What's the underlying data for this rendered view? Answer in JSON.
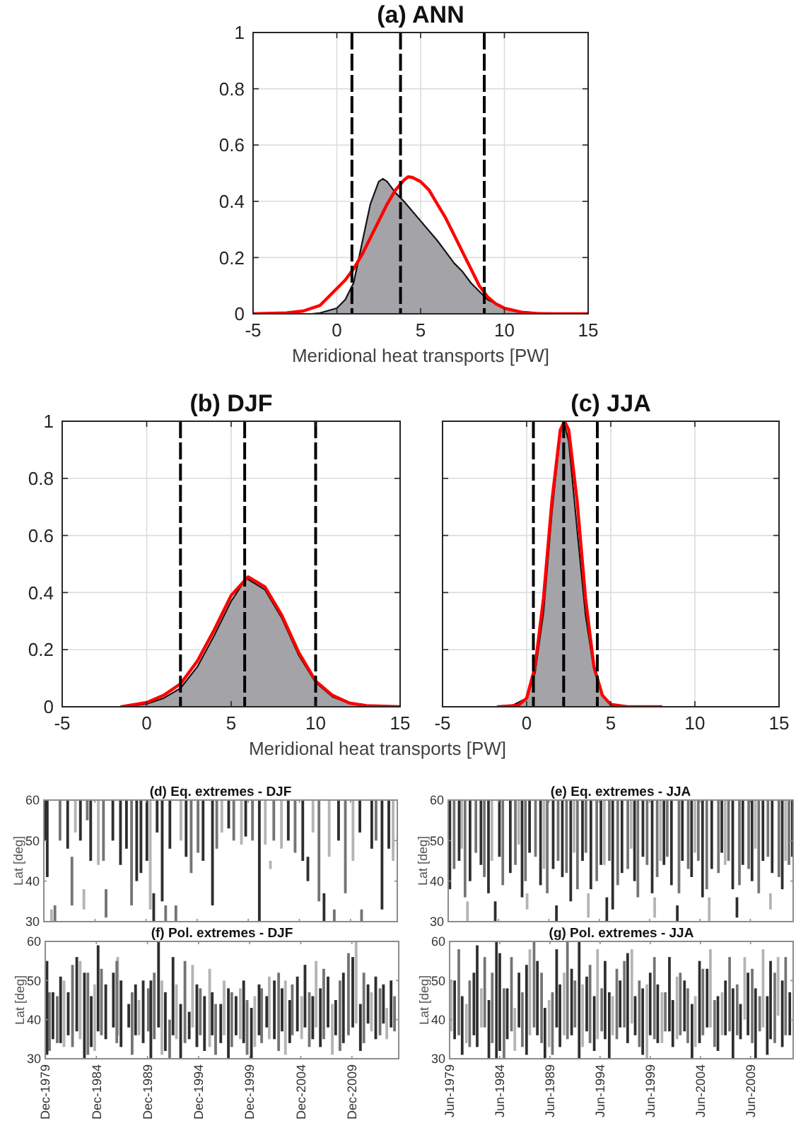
{
  "chart_data": [
    {
      "type": "area",
      "title": "(a) ANN",
      "xlabel": "Meridional heat transports [PW]",
      "xlim": [
        -5,
        15
      ],
      "xticks": [
        -5,
        0,
        5,
        10,
        15
      ],
      "ylim": [
        0,
        1
      ],
      "yticks": [
        0,
        0.2,
        0.4,
        0.6,
        0.8,
        1
      ],
      "grid": true,
      "series": [
        {
          "color": "#a4a4a8",
          "x": [
            -1.5,
            -1,
            0,
            0.5,
            1,
            1.5,
            2,
            2.5,
            2.75,
            3,
            3.5,
            4,
            5,
            6,
            6.5,
            7,
            7.5,
            8,
            8.5,
            9,
            9.5,
            10,
            11,
            12,
            13
          ],
          "values": [
            0,
            0.003,
            0.02,
            0.05,
            0.11,
            0.25,
            0.39,
            0.47,
            0.48,
            0.47,
            0.43,
            0.4,
            0.33,
            0.26,
            0.22,
            0.18,
            0.15,
            0.11,
            0.08,
            0.05,
            0.035,
            0.022,
            0.008,
            0.002,
            0
          ]
        },
        {
          "type": "line",
          "color": "#ff0000",
          "x": [
            -5,
            -3,
            -2,
            -1,
            0,
            0.5,
            1,
            1.5,
            2,
            2.5,
            3,
            3.5,
            4,
            4.25,
            4.5,
            5,
            5.5,
            6,
            6.5,
            7,
            7.5,
            8,
            8.5,
            9,
            9.5,
            10,
            11,
            12,
            13,
            15
          ],
          "values": [
            0,
            0.003,
            0.01,
            0.03,
            0.09,
            0.12,
            0.16,
            0.21,
            0.27,
            0.33,
            0.39,
            0.44,
            0.475,
            0.487,
            0.485,
            0.47,
            0.44,
            0.39,
            0.34,
            0.28,
            0.22,
            0.16,
            0.1,
            0.06,
            0.035,
            0.02,
            0.006,
            0.001,
            0,
            0
          ]
        }
      ],
      "ref_lines": [
        {
          "axis": "x",
          "value": 0.9,
          "color": "#000000",
          "line_style": "dashed"
        },
        {
          "axis": "x",
          "value": 3.8,
          "color": "#000000",
          "line_style": "dashed"
        },
        {
          "axis": "x",
          "value": 8.8,
          "color": "#000000",
          "line_style": "dashed"
        }
      ]
    },
    {
      "type": "area",
      "title": "(b) DJF",
      "xlabel": "Meridional heat transports [PW]",
      "xlim": [
        -5,
        15
      ],
      "xticks": [
        -5,
        0,
        5,
        10,
        15
      ],
      "ylim": [
        0,
        1
      ],
      "yticks": [
        0,
        0.2,
        0.4,
        0.6,
        0.8,
        1
      ],
      "grid": true,
      "series": [
        {
          "color": "#a4a4a8",
          "x": [
            -1.5,
            -1,
            0,
            1,
            2,
            3,
            4,
            5,
            5.9,
            7,
            8,
            9,
            10,
            11,
            12,
            13,
            14
          ],
          "values": [
            0,
            0.003,
            0.01,
            0.03,
            0.065,
            0.14,
            0.25,
            0.37,
            0.45,
            0.41,
            0.31,
            0.18,
            0.085,
            0.035,
            0.012,
            0.003,
            0
          ]
        },
        {
          "type": "line",
          "color": "#ff0000",
          "x": [
            -1.5,
            -1,
            0,
            1,
            2,
            3,
            4,
            5,
            6,
            7,
            8,
            9,
            10,
            11,
            12,
            13,
            15
          ],
          "values": [
            0,
            0.005,
            0.015,
            0.04,
            0.08,
            0.16,
            0.27,
            0.39,
            0.455,
            0.42,
            0.32,
            0.19,
            0.09,
            0.04,
            0.013,
            0.004,
            0
          ]
        }
      ],
      "ref_lines": [
        {
          "axis": "x",
          "value": 2,
          "color": "#000000",
          "line_style": "dashed"
        },
        {
          "axis": "x",
          "value": 5.8,
          "color": "#000000",
          "line_style": "dashed"
        },
        {
          "axis": "x",
          "value": 10,
          "color": "#000000",
          "line_style": "dashed"
        }
      ]
    },
    {
      "type": "area",
      "title": "(c) JJA",
      "xlim": [
        -5,
        15
      ],
      "xticks": [
        -5,
        0,
        5,
        10,
        15
      ],
      "ylim": [
        0,
        1
      ],
      "yticks": [
        0,
        0.2,
        0.4,
        0.6,
        0.8,
        1
      ],
      "grid": true,
      "tick_labels": "x",
      "series": [
        {
          "color": "#a4a4a8",
          "x": [
            -1,
            0,
            0.5,
            1,
            1.5,
            2,
            2.2,
            2.5,
            3,
            3.5,
            4,
            4.5,
            5,
            6
          ],
          "values": [
            0,
            0.03,
            0.12,
            0.33,
            0.68,
            0.96,
            1,
            0.93,
            0.62,
            0.32,
            0.13,
            0.04,
            0.01,
            0
          ]
        },
        {
          "type": "line",
          "color": "#ff0000",
          "x": [
            -1.7,
            -0.5,
            0,
            0.5,
            1,
            1.5,
            2,
            2.25,
            2.5,
            3,
            3.5,
            4,
            4.5,
            5,
            6,
            8
          ],
          "values": [
            0,
            0.005,
            0.03,
            0.14,
            0.38,
            0.72,
            0.97,
            1,
            0.97,
            0.72,
            0.38,
            0.14,
            0.04,
            0.008,
            0,
            0
          ]
        }
      ],
      "ref_lines": [
        {
          "axis": "x",
          "value": 0.4,
          "color": "#000000",
          "line_style": "dashed"
        },
        {
          "axis": "x",
          "value": 2.2,
          "color": "#000000",
          "line_style": "dashed"
        },
        {
          "axis": "x",
          "value": 4.2,
          "color": "#000000",
          "line_style": "dashed"
        }
      ]
    },
    {
      "type": "bar",
      "title": "(d) Eq. extremes - DJF",
      "ylabel": "Lat [deg]",
      "xlim": [
        "1979-12",
        "2014-07"
      ],
      "xticks": [
        {
          "value": "1979-12",
          "label": null
        },
        {
          "value": "1984-12",
          "label": null
        },
        {
          "value": "1989-12",
          "label": null
        },
        {
          "value": "1994-12",
          "label": null
        },
        {
          "value": "1999-12",
          "label": null
        },
        {
          "value": "2004-12",
          "label": null
        },
        {
          "value": "2009-12",
          "label": null
        }
      ],
      "ylim": [
        30,
        60
      ],
      "yticks": [
        30,
        40,
        50,
        60
      ],
      "tick_labels": "y",
      "series": [
        {
          "color": "#b4b4b4",
          "x": [
            "1980-09",
            "1983-01",
            "1983-11",
            "1985-04",
            "1990-05",
            "1993-05",
            "1997-05",
            "1999-04",
            "2001-08",
            "2002-02",
            "2003-03",
            "2006-04",
            "2007-11",
            "2010-03",
            "2014-02"
          ],
          "base": [
            30,
            52,
            33,
            44,
            33,
            50,
            52,
            49,
            49,
            43,
            48,
            52,
            46,
            45,
            45
          ],
          "values": [
            3,
            8,
            5,
            16,
            27,
            10,
            8,
            11,
            11,
            2,
            12,
            8,
            14,
            15,
            15
          ]
        },
        {
          "color": "#747474",
          "x": [
            "1981-01",
            "1981-07",
            "1982-09",
            "1984-03",
            "1985-10",
            "1986-01",
            "1988-07",
            "1991-11",
            "1992-11",
            "1994-05",
            "1995-01",
            "1996-11",
            "1998-07",
            "2000-05",
            "2002-06",
            "2004-07",
            "2006-11",
            "2008-05",
            "2009-06",
            "2011-01",
            "2012-06"
          ],
          "base": [
            30,
            50,
            34,
            55,
            45,
            31,
            34,
            30,
            30,
            42,
            47,
            48,
            50,
            50,
            50,
            47,
            35,
            30,
            37,
            30,
            50
          ],
          "values": [
            4,
            10,
            12,
            5,
            15,
            7,
            26,
            4,
            4,
            18,
            13,
            12,
            10,
            10,
            10,
            13,
            25,
            3,
            23,
            3,
            10
          ]
        },
        {
          "color": "#2e2e2e",
          "x": [
            "1980-01",
            "1980-04",
            "1982-04",
            "1983-07",
            "1984-07",
            "1986-09",
            "1987-06",
            "1988-01",
            "1989-01",
            "1989-06",
            "1990-01",
            "1990-09",
            "1991-01",
            "1991-07",
            "1992-04",
            "1993-11",
            "1995-07",
            "1996-06",
            "1998-01",
            "1999-09",
            "2001-01",
            "2003-11",
            "2005-04",
            "2005-10",
            "2007-05",
            "2008-10",
            "2010-11",
            "2012-01",
            "2013-01",
            "2013-09"
          ],
          "base": [
            50,
            41,
            48,
            50,
            45,
            50,
            44,
            48,
            40,
            42,
            45,
            30,
            52,
            35,
            48,
            46,
            45,
            34,
            53,
            51,
            30,
            50,
            45,
            40,
            30,
            50,
            52,
            48,
            33,
            48
          ],
          "values": [
            10,
            19,
            12,
            10,
            15,
            10,
            16,
            12,
            20,
            18,
            15,
            7,
            8,
            25,
            12,
            14,
            15,
            26,
            7,
            9,
            30,
            10,
            15,
            6,
            7,
            10,
            8,
            12,
            27,
            12
          ]
        }
      ]
    },
    {
      "type": "bar",
      "title": "(e) Eq. extremes - JJA",
      "ylabel": "Lat [deg]",
      "xlim": [
        "1979-06",
        "2013-09"
      ],
      "xticks": [
        {
          "value": "1979-06",
          "label": null
        },
        {
          "value": "1984-06",
          "label": null
        },
        {
          "value": "1989-06",
          "label": null
        },
        {
          "value": "1994-06",
          "label": null
        },
        {
          "value": "1999-06",
          "label": null
        },
        {
          "value": "2004-06",
          "label": null
        },
        {
          "value": "2009-06",
          "label": null
        }
      ],
      "ylim": [
        30,
        60
      ],
      "yticks": [
        30,
        40,
        50,
        60
      ],
      "tick_labels": "y",
      "series": [
        {
          "color": "#b4b4b4",
          "x": [
            "1980-10",
            "1981-05",
            "1983-10",
            "1986-06",
            "1987-04",
            "1988-12",
            "1991-12",
            "1993-05",
            "1994-12",
            "1997-08",
            "1999-12",
            "2000-07",
            "2003-12",
            "2005-05",
            "2006-12",
            "2009-12",
            "2011-06",
            "2012-12"
          ],
          "base": [
            48,
            30,
            45,
            49,
            33,
            43,
            47,
            31,
            44,
            48,
            31,
            45,
            47,
            30,
            44,
            48,
            33,
            45
          ],
          "values": [
            12,
            5,
            15,
            11,
            4,
            17,
            13,
            6,
            16,
            12,
            5,
            15,
            13,
            6,
            16,
            12,
            4,
            15
          ]
        },
        {
          "color": "#747474",
          "x": [
            "1980-01",
            "1981-02",
            "1982-03",
            "1983-01",
            "1984-11",
            "1986-02",
            "1987-02",
            "1988-02",
            "1989-04",
            "1990-05",
            "1991-03",
            "1992-04",
            "1993-02",
            "1994-03",
            "1995-06",
            "1996-04",
            "1997-04",
            "1998-04",
            "1999-03",
            "2000-03",
            "2001-03",
            "2002-05",
            "2003-04",
            "2004-04",
            "2005-02",
            "2006-04",
            "2007-04",
            "2008-05",
            "2009-04",
            "2010-04",
            "2011-03",
            "2012-04",
            "2013-04"
          ],
          "base": [
            43,
            36,
            47,
            41,
            39,
            44,
            40,
            46,
            37,
            45,
            42,
            38,
            47,
            40,
            45,
            39,
            43,
            36,
            44,
            41,
            46,
            37,
            43,
            45,
            38,
            42,
            45,
            39,
            43,
            37,
            46,
            41,
            44
          ],
          "values": [
            17,
            24,
            13,
            19,
            21,
            16,
            20,
            14,
            23,
            15,
            18,
            22,
            13,
            20,
            15,
            21,
            17,
            24,
            16,
            19,
            14,
            23,
            17,
            15,
            22,
            18,
            15,
            21,
            17,
            23,
            14,
            19,
            16
          ]
        },
        {
          "color": "#2e2e2e",
          "x": [
            "1979-08",
            "1980-07",
            "1981-08",
            "1982-09",
            "1983-06",
            "1984-02",
            "1984-07",
            "1985-08",
            "1986-10",
            "1987-07",
            "1988-08",
            "1989-11",
            "1990-03",
            "1990-10",
            "1991-08",
            "1992-10",
            "1993-08",
            "1994-08",
            "1995-03",
            "1995-10",
            "1996-09",
            "1997-12",
            "1998-10",
            "1999-09",
            "2000-11",
            "2001-08",
            "2002-03",
            "2002-09",
            "2003-08",
            "2004-09",
            "2005-08",
            "2006-08",
            "2007-09",
            "2008-02",
            "2008-09",
            "2009-08",
            "2010-09",
            "2011-08",
            "2012-08",
            "2013-08"
          ],
          "base": [
            38,
            45,
            40,
            44,
            37,
            30,
            46,
            42,
            36,
            47,
            39,
            43,
            30,
            41,
            35,
            45,
            38,
            44,
            30,
            33,
            42,
            40,
            46,
            37,
            44,
            39,
            30,
            45,
            41,
            36,
            43,
            47,
            38,
            31,
            44,
            40,
            45,
            42,
            38,
            46
          ],
          "values": [
            22,
            15,
            20,
            16,
            23,
            5,
            14,
            18,
            24,
            13,
            21,
            17,
            4,
            19,
            25,
            15,
            22,
            16,
            6,
            27,
            18,
            20,
            14,
            23,
            16,
            21,
            4,
            15,
            19,
            24,
            17,
            13,
            22,
            5,
            16,
            20,
            15,
            18,
            22,
            14
          ]
        }
      ]
    },
    {
      "type": "bar",
      "title": "(f) Pol. extremes - DJF",
      "ylabel": "Lat [deg]",
      "xlim": [
        "1979-12",
        "2014-07"
      ],
      "xticks": [
        {
          "value": "1979-12",
          "label": "Dec-1979"
        },
        {
          "value": "1984-12",
          "label": "Dec-1984"
        },
        {
          "value": "1989-12",
          "label": "Dec-1989"
        },
        {
          "value": "1994-12",
          "label": "Dec-1994"
        },
        {
          "value": "1999-12",
          "label": "Dec-1999"
        },
        {
          "value": "2004-12",
          "label": "Dec-2004"
        },
        {
          "value": "2009-12",
          "label": "Dec-2009"
        }
      ],
      "ylim": [
        30,
        60
      ],
      "yticks": [
        30,
        40,
        50,
        60
      ],
      "series": [
        {
          "color": "#b4b4b4",
          "x": [
            "1981-10",
            "1983-05",
            "1984-10",
            "1987-01",
            "1989-02",
            "1991-05",
            "1992-10",
            "1994-05",
            "1996-01",
            "1997-06",
            "1999-01",
            "2000-06",
            "2001-11",
            "2003-06",
            "2005-01",
            "2006-06",
            "2008-01",
            "2010-05",
            "2011-11",
            "2013-05"
          ],
          "base": [
            33,
            35,
            32,
            36,
            36,
            31,
            35,
            38,
            33,
            36,
            35,
            33,
            35,
            31,
            35,
            38,
            31,
            39,
            37,
            35
          ],
          "values": [
            17,
            20,
            17,
            20,
            9,
            19,
            14,
            16,
            20,
            14,
            13,
            13,
            16,
            19,
            11,
            17,
            13,
            21,
            10,
            8
          ]
        },
        {
          "color": "#747474",
          "x": [
            "1980-05",
            "1981-02",
            "1982-08",
            "1984-02",
            "1985-06",
            "1986-12",
            "1988-06",
            "1990-01",
            "1990-08",
            "1992-02",
            "1993-08",
            "1995-02",
            "1996-08",
            "1998-03",
            "1999-09",
            "2001-02",
            "2002-10",
            "2004-02",
            "2005-10",
            "2007-03",
            "2008-10",
            "2009-08",
            "2011-02",
            "2012-09",
            "2014-02"
          ],
          "base": [
            32,
            34,
            33,
            31,
            36,
            34,
            31,
            37,
            35,
            30,
            34,
            36,
            31,
            33,
            31,
            34,
            32,
            36,
            33,
            35,
            32,
            36,
            34,
            36,
            37
          ],
          "values": [
            15,
            12,
            21,
            21,
            17,
            21,
            16,
            11,
            17,
            10,
            21,
            12,
            13,
            14,
            14,
            14,
            20,
            13,
            14,
            18,
            18,
            21,
            18,
            12,
            9
          ]
        },
        {
          "color": "#2e2e2e",
          "x": [
            "1980-02",
            "1980-09",
            "1981-06",
            "1982-03",
            "1983-01",
            "1983-10",
            "1984-06",
            "1985-02",
            "1985-11",
            "1986-08",
            "1987-05",
            "1988-02",
            "1988-10",
            "1989-07",
            "1990-04",
            "1991-01",
            "1991-09",
            "1992-06",
            "1993-03",
            "1994-01",
            "1994-10",
            "1995-07",
            "1996-04",
            "1997-02",
            "1997-11",
            "1998-08",
            "1999-05",
            "2000-02",
            "2000-11",
            "2001-08",
            "2002-05",
            "2003-02",
            "2003-11",
            "2004-08",
            "2005-05",
            "2006-02",
            "2006-11",
            "2007-08",
            "2008-05",
            "2009-02",
            "2010-01",
            "2010-10",
            "2011-07",
            "2012-04",
            "2013-01",
            "2013-10"
          ],
          "base": [
            31,
            35,
            34,
            36,
            37,
            30,
            33,
            37,
            35,
            38,
            33,
            38,
            36,
            34,
            30,
            38,
            32,
            36,
            30,
            35,
            33,
            32,
            36,
            34,
            30,
            36,
            34,
            30,
            36,
            38,
            35,
            37,
            34,
            37,
            38,
            35,
            33,
            38,
            36,
            34,
            38,
            32,
            39,
            35,
            39,
            38
          ],
          "values": [
            24,
            12,
            17,
            11,
            19,
            22,
            13,
            22,
            14,
            14,
            17,
            6,
            13,
            16,
            20,
            22,
            15,
            20,
            14,
            7,
            16,
            14,
            11,
            10,
            18,
            10,
            16,
            13,
            13,
            8,
            15,
            11,
            11,
            14,
            16,
            11,
            15,
            13,
            9,
            18,
            18,
            12,
            10,
            16,
            10,
            12
          ]
        }
      ]
    },
    {
      "type": "bar",
      "title": "(g) Pol. extremes - JJA",
      "ylabel": "Lat [deg]",
      "xlim": [
        "1979-06",
        "2013-09"
      ],
      "xticks": [
        {
          "value": "1979-06",
          "label": "Jun-1979"
        },
        {
          "value": "1984-06",
          "label": "Jun-1984"
        },
        {
          "value": "1989-06",
          "label": "Jun-1989"
        },
        {
          "value": "1994-06",
          "label": "Jun-1994"
        },
        {
          "value": "1999-06",
          "label": "Jun-1999"
        },
        {
          "value": "2004-06",
          "label": "Jun-2004"
        },
        {
          "value": "2009-06",
          "label": "Jun-2009"
        }
      ],
      "ylim": [
        30,
        60
      ],
      "yticks": [
        30,
        40,
        50,
        60
      ],
      "series": [
        {
          "color": "#b4b4b4",
          "x": [
            "1979-08",
            "1981-02",
            "1982-08",
            "1985-12",
            "1987-06",
            "1989-05",
            "1990-11",
            "1992-09",
            "1994-03",
            "1995-09",
            "1997-08",
            "1999-02",
            "2000-08",
            "2002-02",
            "2003-12",
            "2005-06",
            "2006-08",
            "2008-11",
            "2010-09",
            "2012-03"
          ],
          "base": [
            37,
            34,
            38,
            32,
            36,
            33,
            36,
            33,
            35,
            36,
            39,
            30,
            34,
            35,
            33,
            38,
            36,
            40,
            38,
            41
          ],
          "values": [
            13,
            10,
            10,
            11,
            22,
            12,
            16,
            16,
            23,
            10,
            19,
            19,
            13,
            16,
            13,
            20,
            11,
            16,
            20,
            15
          ]
        },
        {
          "color": "#747474",
          "x": [
            "1980-05",
            "1981-06",
            "1982-12",
            "1983-09",
            "1984-11",
            "1985-08",
            "1986-09",
            "1987-11",
            "1988-08",
            "1989-09",
            "1991-03",
            "1991-12",
            "1993-06",
            "1994-08",
            "1996-02",
            "1996-11",
            "1998-05",
            "1999-11",
            "2000-12",
            "2002-06",
            "2003-03",
            "2004-09",
            "2005-11",
            "2007-05",
            "2008-02",
            "2009-08",
            "2010-05",
            "2011-11",
            "2012-12"
          ],
          "base": [
            36,
            33,
            38,
            34,
            30,
            37,
            33,
            38,
            34,
            31,
            35,
            38,
            34,
            37,
            35,
            38,
            33,
            35,
            37,
            36,
            34,
            36,
            33,
            37,
            36,
            34,
            37,
            34,
            36
          ],
          "values": [
            22,
            17,
            18,
            18,
            18,
            19,
            14,
            22,
            18,
            16,
            25,
            12,
            20,
            11,
            18,
            17,
            17,
            21,
            10,
            16,
            14,
            17,
            12,
            19,
            13,
            19,
            9,
            18,
            20
          ]
        },
        {
          "color": "#2e2e2e",
          "x": [
            "1979-12",
            "1980-09",
            "1981-11",
            "1982-03",
            "1983-05",
            "1984-02",
            "1984-06",
            "1985-03",
            "1986-05",
            "1987-02",
            "1988-03",
            "1988-12",
            "1990-02",
            "1990-06",
            "1991-08",
            "1992-05",
            "1993-02",
            "1993-11",
            "1994-12",
            "1995-05",
            "1996-06",
            "1997-03",
            "1997-12",
            "1998-09",
            "1999-06",
            "2000-03",
            "2001-05",
            "2001-09",
            "2002-11",
            "2003-08",
            "2004-05",
            "2005-02",
            "2006-03",
            "2006-12",
            "2007-09",
            "2008-06",
            "2009-03",
            "2009-12",
            "2011-02",
            "2011-06",
            "2012-08",
            "2013-05"
          ],
          "base": [
            35,
            31,
            36,
            33,
            30,
            30,
            32,
            35,
            38,
            31,
            36,
            30,
            38,
            33,
            36,
            30,
            37,
            32,
            35,
            30,
            38,
            34,
            36,
            31,
            36,
            34,
            37,
            33,
            37,
            30,
            34,
            38,
            32,
            36,
            30,
            35,
            36,
            30,
            31,
            35,
            33,
            36
          ],
          "values": [
            15,
            15,
            16,
            26,
            15,
            30,
            25,
            13,
            14,
            23,
            19,
            13,
            20,
            16,
            17,
            30,
            14,
            14,
            20,
            17,
            12,
            23,
            10,
            17,
            16,
            15,
            19,
            12,
            13,
            14,
            21,
            15,
            14,
            14,
            18,
            9,
            16,
            18,
            15,
            20,
            17,
            11
          ]
        }
      ]
    }
  ]
}
